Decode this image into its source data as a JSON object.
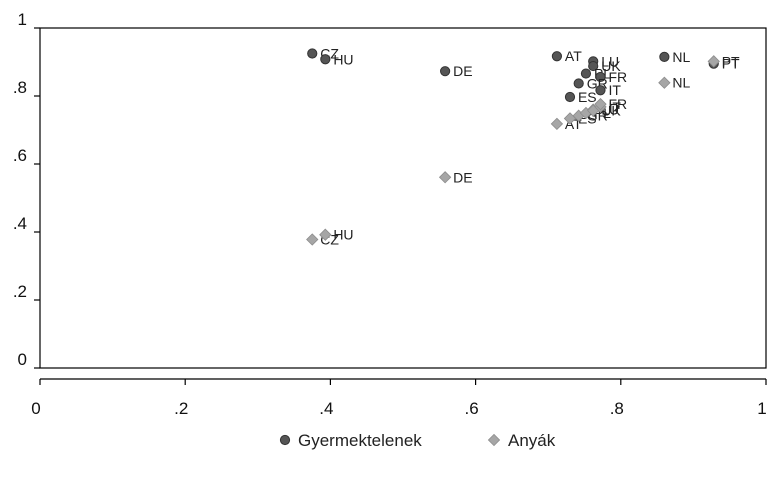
{
  "chart_data": {
    "type": "scatter",
    "title": "",
    "xlabel": "",
    "ylabel": "",
    "xlim": [
      0,
      1
    ],
    "ylim": [
      0,
      1
    ],
    "x_ticks": [
      0,
      0.2,
      0.4,
      0.6,
      0.8,
      1
    ],
    "x_tick_labels": [
      "0",
      ".2",
      ".4",
      ".6",
      ".8",
      "1"
    ],
    "y_ticks": [
      0,
      0.2,
      0.4,
      0.6,
      0.8,
      1
    ],
    "y_tick_labels": [
      "0",
      ".2",
      ".4",
      ".6",
      ".8",
      "1"
    ],
    "grid": false,
    "legend_position": "bottom",
    "series": [
      {
        "name": "Gyermektelenek",
        "marker": "circle",
        "color": "#555555",
        "points": [
          {
            "label": "CZ",
            "x": 0.375,
            "y": 0.925
          },
          {
            "label": "HU",
            "x": 0.393,
            "y": 0.908
          },
          {
            "label": "DE",
            "x": 0.558,
            "y": 0.873
          },
          {
            "label": "AT",
            "x": 0.712,
            "y": 0.917
          },
          {
            "label": "LU",
            "x": 0.762,
            "y": 0.902
          },
          {
            "label": "UK",
            "x": 0.762,
            "y": 0.888
          },
          {
            "label": "PL",
            "x": 0.752,
            "y": 0.866
          },
          {
            "label": "FR",
            "x": 0.772,
            "y": 0.856
          },
          {
            "label": "GR",
            "x": 0.742,
            "y": 0.837
          },
          {
            "label": "IT",
            "x": 0.772,
            "y": 0.817
          },
          {
            "label": "ES",
            "x": 0.73,
            "y": 0.797
          },
          {
            "label": "NL",
            "x": 0.86,
            "y": 0.915
          },
          {
            "label": "PT",
            "x": 0.928,
            "y": 0.895
          }
        ]
      },
      {
        "name": "Anyák",
        "marker": "diamond",
        "color": "#a6a6a6",
        "points": [
          {
            "label": "CZ",
            "x": 0.375,
            "y": 0.378
          },
          {
            "label": "HU",
            "x": 0.393,
            "y": 0.392
          },
          {
            "label": "DE",
            "x": 0.558,
            "y": 0.561
          },
          {
            "label": "AT",
            "x": 0.712,
            "y": 0.718
          },
          {
            "label": "ES",
            "x": 0.73,
            "y": 0.734
          },
          {
            "label": "GR",
            "x": 0.742,
            "y": 0.742
          },
          {
            "label": "PL",
            "x": 0.752,
            "y": 0.75
          },
          {
            "label": "LU",
            "x": 0.762,
            "y": 0.76
          },
          {
            "label": "UK",
            "x": 0.762,
            "y": 0.757
          },
          {
            "label": "IT",
            "x": 0.772,
            "y": 0.768
          },
          {
            "label": "FR",
            "x": 0.772,
            "y": 0.776
          },
          {
            "label": "NL",
            "x": 0.86,
            "y": 0.839
          },
          {
            "label": "PT",
            "x": 0.928,
            "y": 0.902
          }
        ]
      }
    ]
  }
}
